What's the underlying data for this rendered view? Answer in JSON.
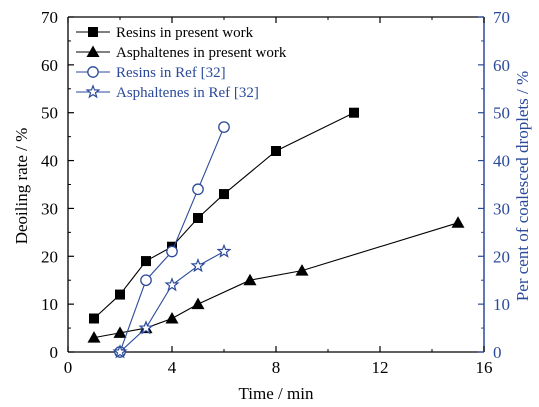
{
  "chart_data": {
    "type": "line",
    "xlabel": "Time / min",
    "ylabel_left": "Deoiling rate / %",
    "ylabel_right": "Per cent of coalesced droplets / %",
    "xlim": [
      0,
      16
    ],
    "ylim_left": [
      0,
      70
    ],
    "ylim_right": [
      0,
      70
    ],
    "x_ticks": [
      "0",
      "4",
      "8",
      "12",
      "16"
    ],
    "y_ticks_left": [
      "0",
      "10",
      "20",
      "30",
      "40",
      "50",
      "60",
      "70"
    ],
    "y_ticks_right": [
      "0",
      "10",
      "20",
      "30",
      "40",
      "50",
      "60",
      "70"
    ],
    "grid": false,
    "legend_position": "top-left",
    "colors": {
      "black": "#000000",
      "blue": "#2b4a9b"
    },
    "series": [
      {
        "name": "Resins in present work",
        "marker": "filled-square",
        "color": "#000000",
        "axis": "left",
        "x": [
          1,
          2,
          3,
          4,
          5,
          6,
          8,
          11
        ],
        "y": [
          7,
          12,
          19,
          22,
          28,
          33,
          42,
          50
        ]
      },
      {
        "name": "Asphaltenes  in present work",
        "marker": "filled-triangle",
        "color": "#000000",
        "axis": "left",
        "x": [
          1,
          2,
          3,
          4,
          5,
          7,
          9,
          15
        ],
        "y": [
          3,
          4,
          5,
          7,
          10,
          15,
          17,
          27
        ]
      },
      {
        "name": "Resins in Ref [32]",
        "marker": "open-circle",
        "color": "#2b4a9b",
        "axis": "right",
        "x": [
          2,
          3,
          4,
          5,
          6
        ],
        "y": [
          0,
          15,
          21,
          34,
          47
        ]
      },
      {
        "name": "Asphaltenes in Ref [32]",
        "marker": "open-star",
        "color": "#2b4a9b",
        "axis": "right",
        "x": [
          2,
          3,
          4,
          5,
          6
        ],
        "y": [
          0,
          5,
          14,
          18,
          21
        ]
      }
    ]
  }
}
